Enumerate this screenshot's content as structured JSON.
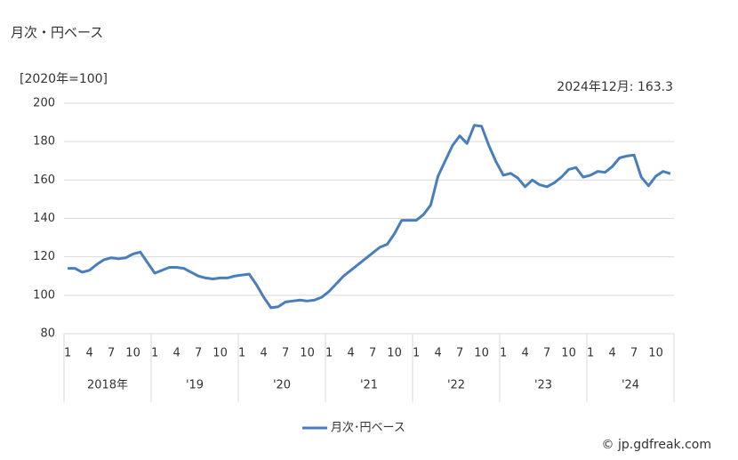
{
  "chart_data": {
    "type": "line",
    "title": "月次・円ベース",
    "y_label": "[2020年=100]",
    "annotation": "2024年12月: 163.3",
    "source": "© jp.gdfreak.com",
    "categories": [
      "1",
      null,
      null,
      "4",
      null,
      null,
      "7",
      null,
      null,
      "10",
      null,
      null,
      "1",
      null,
      null,
      "4",
      null,
      null,
      "7",
      null,
      null,
      "10",
      null,
      null,
      "1",
      null,
      null,
      "4",
      null,
      null,
      "7",
      null,
      null,
      "10",
      null,
      null,
      "1",
      null,
      null,
      "4",
      null,
      null,
      "7",
      null,
      null,
      "10",
      null,
      null,
      "1",
      null,
      null,
      "4",
      null,
      null,
      "7",
      null,
      null,
      "10",
      null,
      null,
      "1",
      null,
      null,
      "4",
      null,
      null,
      "7",
      null,
      null,
      "10",
      null,
      null,
      "1",
      null,
      null,
      "4",
      null,
      null,
      "7",
      null,
      null,
      "10",
      null,
      null
    ],
    "year_groups": [
      "2018年",
      "'19",
      "'20",
      "'21",
      "'22",
      "'23",
      "'24"
    ],
    "series": [
      {
        "name": "月次･円ベース",
        "color": "#4a7ebb",
        "values": [
          114,
          114,
          112,
          113,
          116,
          118.5,
          119.5,
          119,
          119.5,
          121.5,
          122.5,
          117,
          111.5,
          113,
          114.5,
          114.5,
          114,
          112,
          110,
          109,
          108.5,
          109,
          109,
          110,
          110.5,
          111,
          105.5,
          99,
          93.5,
          94,
          96.5,
          97,
          97.5,
          97,
          97.5,
          99,
          102,
          106,
          110,
          113,
          116,
          119,
          122,
          125,
          126.5,
          132,
          139,
          139,
          139,
          142,
          147,
          162,
          170,
          178,
          183,
          179,
          188.5,
          188,
          178,
          169.5,
          162.5,
          163.5,
          161,
          156.5,
          160,
          157.5,
          156.5,
          158.5,
          161.5,
          165.5,
          166.5,
          161.5,
          162.5,
          164.5,
          164,
          167,
          171.5,
          172.5,
          173,
          161.5,
          157,
          162,
          164.5,
          163.3
        ]
      }
    ],
    "ylim": [
      80,
      200
    ],
    "yticks": [
      80,
      100,
      120,
      140,
      160,
      180,
      200
    ],
    "grid": true
  }
}
